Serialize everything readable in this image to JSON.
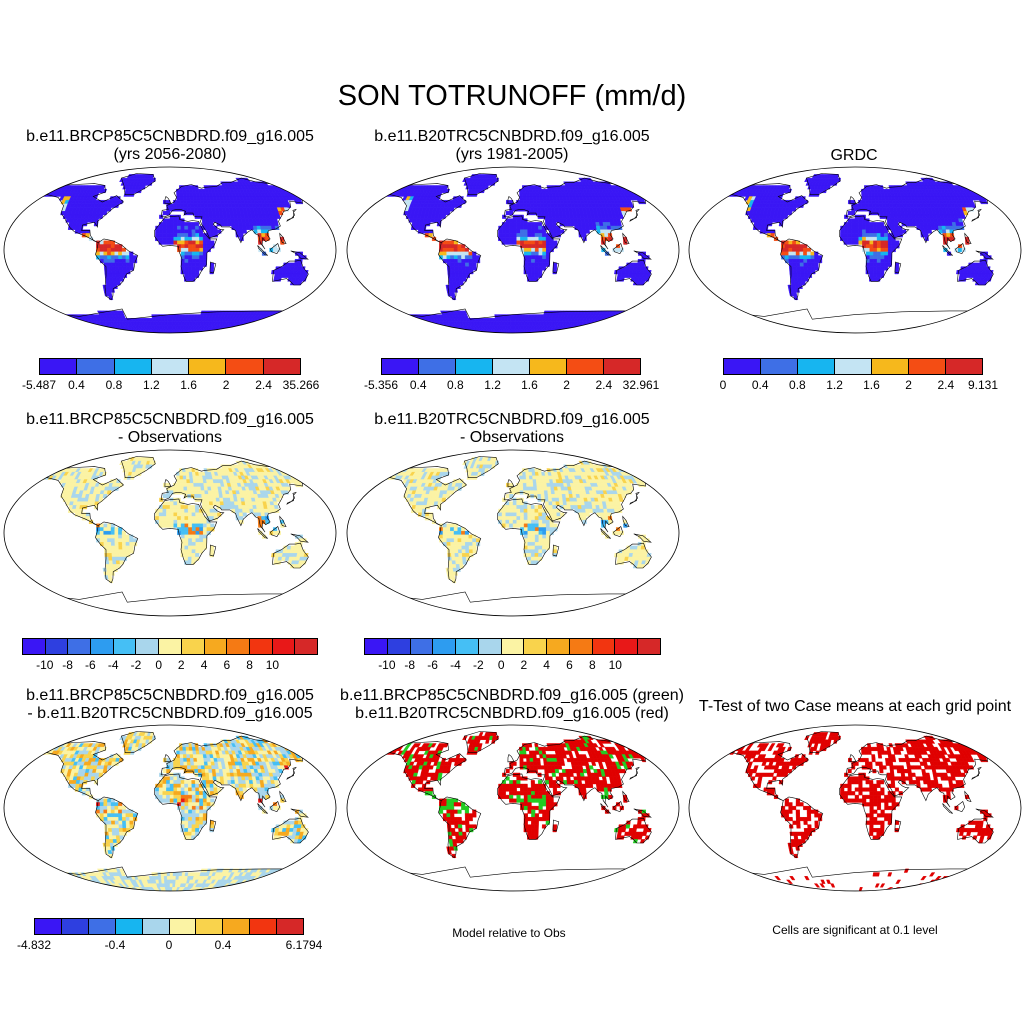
{
  "title": "SON TOTRUNOFF (mm/d)",
  "colors": {
    "land_case_palette": [
      "#3a16f5",
      "#3e6fe6",
      "#17b5f0",
      "#c4e4f3",
      "#f6b81c",
      "#f44d14",
      "#d62828"
    ],
    "diff_palette": [
      "#3a16f5",
      "#2e3fe0",
      "#3e6fe6",
      "#2d9cf0",
      "#45bff5",
      "#a9d6ec",
      "#fbf3a4",
      "#f9d34c",
      "#f6a91f",
      "#f57a14",
      "#f23510",
      "#e81818",
      "#d62828"
    ],
    "sig_red": "#e00000",
    "sig_green": "#22cc22"
  },
  "panels": {
    "p1": {
      "line1": "b.e11.BRCP85C5CNBDRD.f09_g16.005",
      "line2": "(yrs 2056-2080)"
    },
    "p2": {
      "line1": "b.e11.B20TRC5CNBDRD.f09_g16.005",
      "line2": "(yrs 1981-2005)"
    },
    "p3": {
      "line1": "GRDC"
    },
    "p4": {
      "line1": "b.e11.BRCP85C5CNBDRD.f09_g16.005",
      "line2": "- Observations"
    },
    "p5": {
      "line1": "b.e11.B20TRC5CNBDRD.f09_g16.005",
      "line2": "- Observations"
    },
    "p6": {
      "line1": "b.e11.BRCP85C5CNBDRD.f09_g16.005",
      "line2": "- b.e11.B20TRC5CNBDRD.f09_g16.005"
    },
    "p7": {
      "line1": "b.e11.BRCP85C5CNBDRD.f09_g16.005 (green)",
      "line2": "b.e11.B20TRC5CNBDRD.f09_g16.005 (red)",
      "note": "Model relative to Obs"
    },
    "p8": {
      "line1": "T-Test of two Case means at each grid point",
      "note": "Cells are significant at 0.1 level"
    }
  },
  "colorbars": {
    "cb1": [
      "-5.487",
      "0.4",
      "0.8",
      "1.2",
      "1.6",
      "2",
      "2.4",
      "35.266"
    ],
    "cb2": [
      "-5.356",
      "0.4",
      "0.8",
      "1.2",
      "1.6",
      "2",
      "2.4",
      "32.961"
    ],
    "cb3": [
      "0",
      "0.4",
      "0.8",
      "1.2",
      "1.6",
      "2",
      "2.4",
      "9.131"
    ],
    "cb4": [
      "-10",
      "-8",
      "-6",
      "-4",
      "-2",
      "0",
      "2",
      "4",
      "6",
      "8",
      "10"
    ],
    "cb5": [
      "-10",
      "-8",
      "-6",
      "-4",
      "-2",
      "0",
      "2",
      "4",
      "6",
      "8",
      "10"
    ],
    "cb6": [
      "-4.832",
      "-0.4",
      "0",
      "0.4",
      "6.1794"
    ]
  }
}
